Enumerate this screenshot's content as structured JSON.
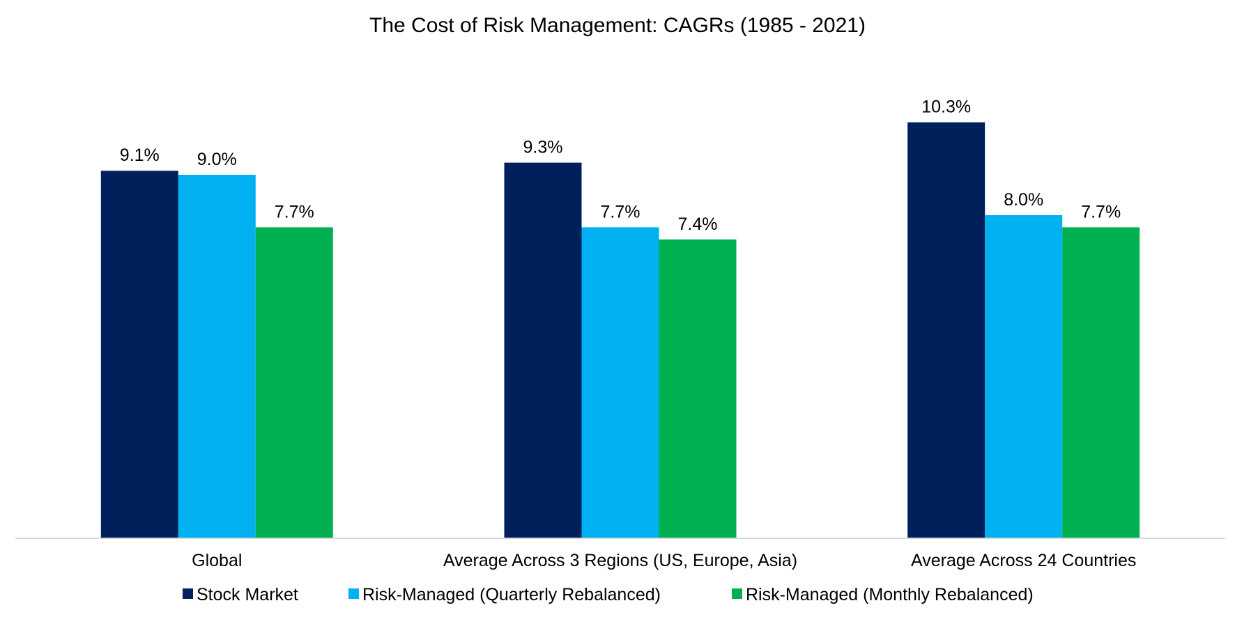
{
  "chart_data": {
    "type": "bar",
    "title": "The Cost of Risk Management:  CAGRs (1985 - 2021)",
    "xlabel": "",
    "ylabel": "",
    "ylim": [
      0,
      12
    ],
    "grid": false,
    "legend_position": "bottom",
    "categories": [
      "Global",
      "Average Across 3 Regions (US, Europe, Asia)",
      "Average Across 24 Countries"
    ],
    "series": [
      {
        "name": "Stock Market",
        "color": "#00205B",
        "values": [
          9.1,
          9.3,
          10.3
        ],
        "labels": [
          "9.1%",
          "9.3%",
          "10.3%"
        ]
      },
      {
        "name": "Risk-Managed (Quarterly Rebalanced)",
        "color": "#00B0F0",
        "values": [
          9.0,
          7.7,
          8.0
        ],
        "labels": [
          "9.0%",
          "7.7%",
          "8.0%"
        ]
      },
      {
        "name": "Risk-Managed (Monthly Rebalanced)",
        "color": "#00B050",
        "values": [
          7.7,
          7.4,
          7.7
        ],
        "labels": [
          "7.7%",
          "7.4%",
          "7.7%"
        ]
      }
    ]
  }
}
